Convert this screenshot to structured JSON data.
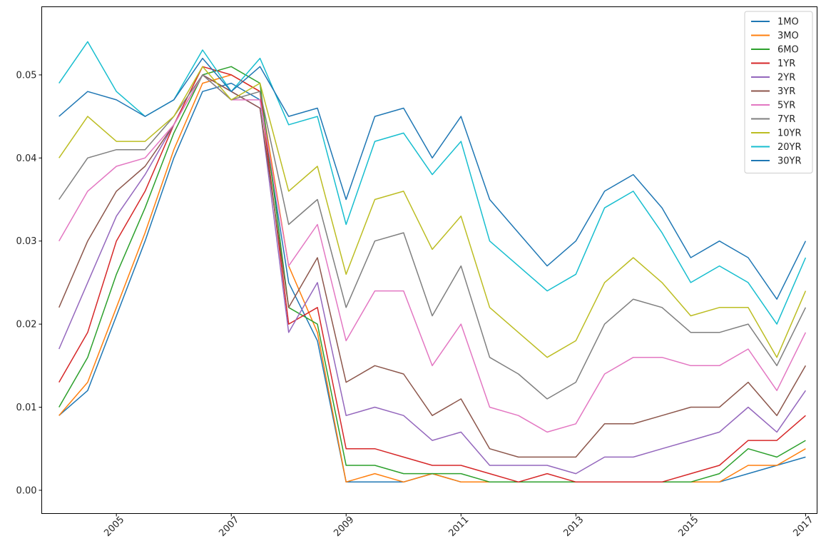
{
  "chart_data": {
    "type": "line",
    "xlabel": "",
    "ylabel": "",
    "xlim": [
      2003.7,
      2017.2
    ],
    "ylim": [
      -0.0028,
      0.0582
    ],
    "x_ticks": [
      2005,
      2007,
      2009,
      2011,
      2013,
      2015,
      2017
    ],
    "x_tick_labels": [
      "2005",
      "2007",
      "2009",
      "2011",
      "2013",
      "2015",
      "2017"
    ],
    "y_ticks": [
      0.0,
      0.01,
      0.02,
      0.03,
      0.04,
      0.05
    ],
    "y_tick_labels": [
      "0.00",
      "0.01",
      "0.02",
      "0.03",
      "0.04",
      "0.05"
    ],
    "grid": false,
    "legend_position": "top-right",
    "x": [
      2004.0,
      2004.5,
      2005.0,
      2005.5,
      2006.0,
      2006.5,
      2007.0,
      2007.5,
      2008.0,
      2008.5,
      2009.0,
      2009.5,
      2010.0,
      2010.5,
      2011.0,
      2011.5,
      2012.0,
      2012.5,
      2013.0,
      2013.5,
      2014.0,
      2014.5,
      2015.0,
      2015.5,
      2016.0,
      2016.5,
      2017.0
    ],
    "series": [
      {
        "name": "1MO",
        "color": "#1f77b4",
        "values": [
          0.009,
          0.012,
          0.021,
          0.03,
          0.04,
          0.048,
          0.049,
          0.047,
          0.025,
          0.018,
          0.001,
          0.001,
          0.001,
          0.002,
          0.001,
          0.001,
          0.001,
          0.001,
          0.001,
          0.001,
          0.001,
          0.001,
          0.001,
          0.001,
          0.002,
          0.003,
          0.004
        ]
      },
      {
        "name": "3MO",
        "color": "#ff7f0e",
        "values": [
          0.009,
          0.013,
          0.022,
          0.031,
          0.041,
          0.049,
          0.05,
          0.048,
          0.027,
          0.019,
          0.001,
          0.002,
          0.001,
          0.002,
          0.001,
          0.001,
          0.001,
          0.001,
          0.001,
          0.001,
          0.001,
          0.001,
          0.001,
          0.001,
          0.003,
          0.003,
          0.005
        ]
      },
      {
        "name": "6MO",
        "color": "#2ca02c",
        "values": [
          0.01,
          0.016,
          0.026,
          0.034,
          0.043,
          0.05,
          0.051,
          0.049,
          0.022,
          0.02,
          0.003,
          0.003,
          0.002,
          0.002,
          0.002,
          0.001,
          0.001,
          0.001,
          0.001,
          0.001,
          0.001,
          0.001,
          0.001,
          0.002,
          0.005,
          0.004,
          0.006
        ]
      },
      {
        "name": "1YR",
        "color": "#d62728",
        "values": [
          0.013,
          0.019,
          0.03,
          0.036,
          0.044,
          0.051,
          0.05,
          0.048,
          0.02,
          0.022,
          0.005,
          0.005,
          0.004,
          0.003,
          0.003,
          0.002,
          0.001,
          0.002,
          0.001,
          0.001,
          0.001,
          0.001,
          0.002,
          0.003,
          0.006,
          0.006,
          0.009
        ]
      },
      {
        "name": "2YR",
        "color": "#9467bd",
        "values": [
          0.017,
          0.025,
          0.033,
          0.038,
          0.044,
          0.05,
          0.048,
          0.046,
          0.019,
          0.025,
          0.009,
          0.01,
          0.009,
          0.006,
          0.007,
          0.003,
          0.003,
          0.003,
          0.002,
          0.004,
          0.004,
          0.005,
          0.006,
          0.007,
          0.01,
          0.007,
          0.012
        ]
      },
      {
        "name": "3YR",
        "color": "#8c564b",
        "values": [
          0.022,
          0.03,
          0.036,
          0.039,
          0.044,
          0.05,
          0.048,
          0.046,
          0.022,
          0.028,
          0.013,
          0.015,
          0.014,
          0.009,
          0.011,
          0.005,
          0.004,
          0.004,
          0.004,
          0.008,
          0.008,
          0.009,
          0.01,
          0.01,
          0.013,
          0.009,
          0.015
        ]
      },
      {
        "name": "5YR",
        "color": "#e377c2",
        "values": [
          0.03,
          0.036,
          0.039,
          0.04,
          0.044,
          0.05,
          0.047,
          0.047,
          0.027,
          0.032,
          0.018,
          0.024,
          0.024,
          0.015,
          0.02,
          0.01,
          0.009,
          0.007,
          0.008,
          0.014,
          0.016,
          0.016,
          0.015,
          0.015,
          0.017,
          0.012,
          0.019
        ]
      },
      {
        "name": "7YR",
        "color": "#7f7f7f",
        "values": [
          0.035,
          0.04,
          0.041,
          0.041,
          0.045,
          0.05,
          0.047,
          0.048,
          0.032,
          0.035,
          0.022,
          0.03,
          0.031,
          0.021,
          0.027,
          0.016,
          0.014,
          0.011,
          0.013,
          0.02,
          0.023,
          0.022,
          0.019,
          0.019,
          0.02,
          0.015,
          0.022
        ]
      },
      {
        "name": "10YR",
        "color": "#bcbd22",
        "values": [
          0.04,
          0.045,
          0.042,
          0.042,
          0.045,
          0.051,
          0.047,
          0.049,
          0.036,
          0.039,
          0.026,
          0.035,
          0.036,
          0.029,
          0.033,
          0.022,
          0.019,
          0.016,
          0.018,
          0.025,
          0.028,
          0.025,
          0.021,
          0.022,
          0.022,
          0.016,
          0.024
        ]
      },
      {
        "name": "20YR",
        "color": "#17becf",
        "values": [
          0.049,
          0.054,
          0.048,
          0.045,
          0.047,
          0.053,
          0.048,
          0.052,
          0.044,
          0.045,
          0.032,
          0.042,
          0.043,
          0.038,
          0.042,
          0.03,
          0.027,
          0.024,
          0.026,
          0.034,
          0.036,
          0.031,
          0.025,
          0.027,
          0.025,
          0.02,
          0.028
        ]
      },
      {
        "name": "30YR",
        "color": "#1f77b4",
        "values": [
          0.045,
          0.048,
          0.047,
          0.045,
          0.047,
          0.052,
          0.048,
          0.051,
          0.045,
          0.046,
          0.035,
          0.045,
          0.046,
          0.04,
          0.045,
          0.035,
          0.031,
          0.027,
          0.03,
          0.036,
          0.038,
          0.034,
          0.028,
          0.03,
          0.028,
          0.023,
          0.03
        ]
      }
    ]
  }
}
